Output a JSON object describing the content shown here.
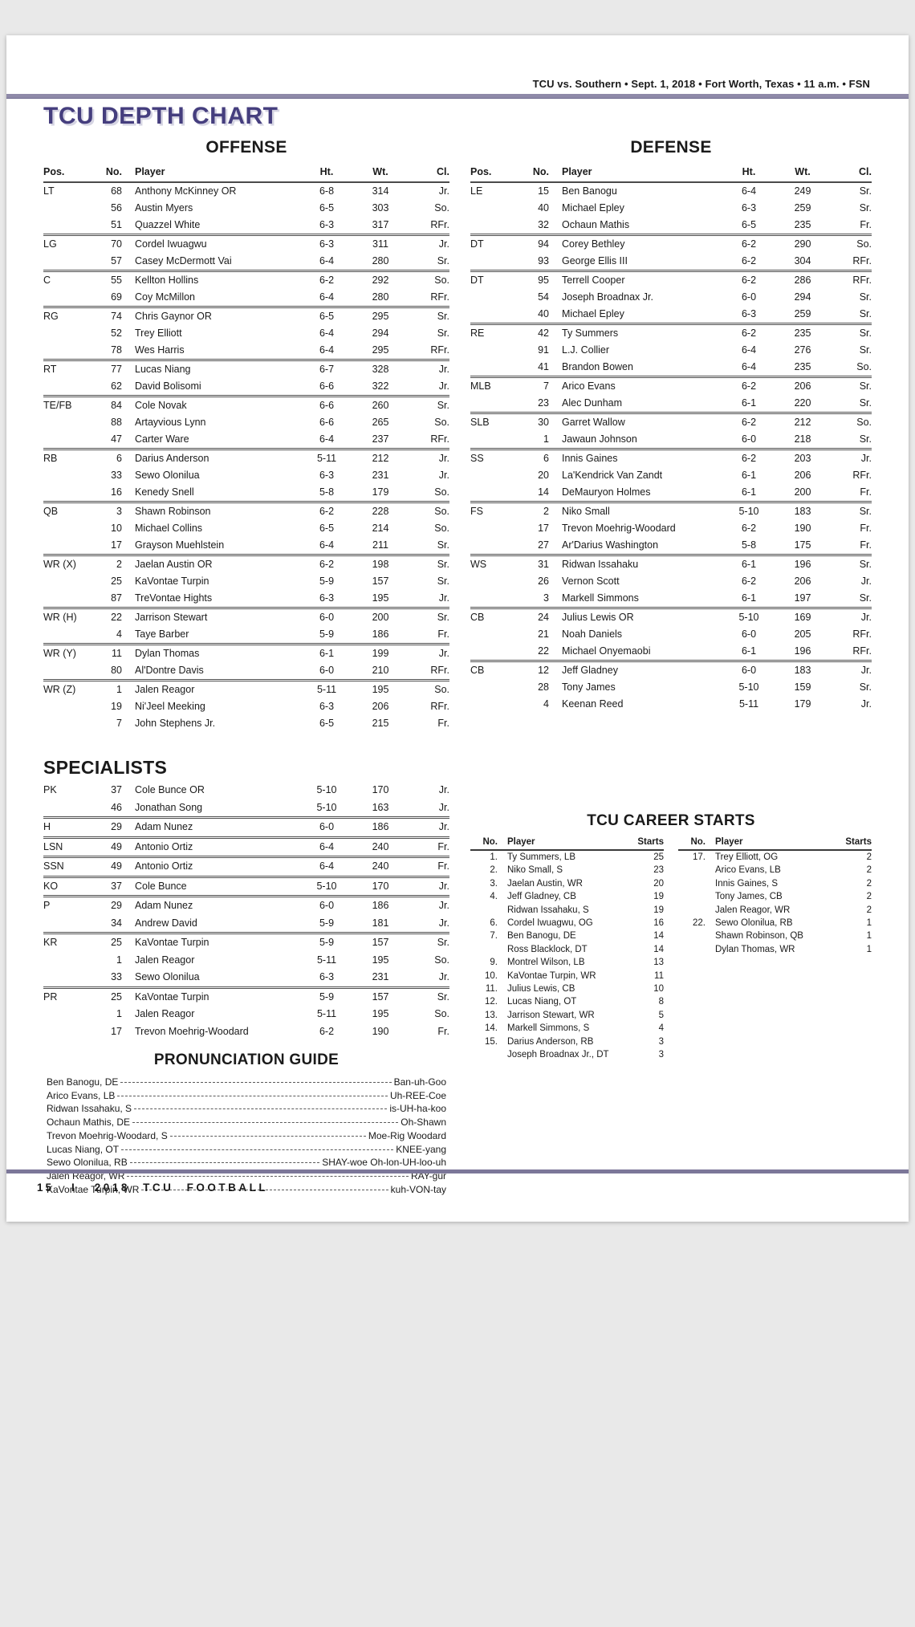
{
  "header": {
    "game_info": "TCU vs. Southern • Sept. 1, 2018 • Fort Worth, Texas • 11 a.m. • FSN"
  },
  "title": "TCU DEPTH CHART",
  "colors": {
    "accent_purple": "#453e7e",
    "header_rule": "#8f8aa9",
    "footer_rule": "#7c7799"
  },
  "columns": {
    "pos": "Pos.",
    "no": "No.",
    "player": "Player",
    "ht": "Ht.",
    "wt": "Wt.",
    "cl": "Cl."
  },
  "offense": {
    "title": "OFFENSE",
    "rows": [
      {
        "pos": "LT",
        "no": "68",
        "player": "Anthony McKinney OR",
        "ht": "6-8",
        "wt": "314",
        "cl": "Jr."
      },
      {
        "pos": "",
        "no": "56",
        "player": "Austin Myers",
        "ht": "6-5",
        "wt": "303",
        "cl": "So."
      },
      {
        "pos": "",
        "no": "51",
        "player": "Quazzel White",
        "ht": "6-3",
        "wt": "317",
        "cl": "RFr."
      },
      {
        "pos": "LG",
        "no": "70",
        "player": "Cordel Iwuagwu",
        "ht": "6-3",
        "wt": "311",
        "cl": "Jr.",
        "sep": true
      },
      {
        "pos": "",
        "no": "57",
        "player": "Casey McDermott Vai",
        "ht": "6-4",
        "wt": "280",
        "cl": "Sr."
      },
      {
        "pos": "C",
        "no": "55",
        "player": "Kellton Hollins",
        "ht": "6-2",
        "wt": "292",
        "cl": "So.",
        "sep": true
      },
      {
        "pos": "",
        "no": "69",
        "player": "Coy McMillon",
        "ht": "6-4",
        "wt": "280",
        "cl": "RFr."
      },
      {
        "pos": "RG",
        "no": "74",
        "player": "Chris Gaynor OR",
        "ht": "6-5",
        "wt": "295",
        "cl": "Sr.",
        "sep": true
      },
      {
        "pos": "",
        "no": "52",
        "player": "Trey Elliott",
        "ht": "6-4",
        "wt": "294",
        "cl": "Sr."
      },
      {
        "pos": "",
        "no": "78",
        "player": "Wes Harris",
        "ht": "6-4",
        "wt": "295",
        "cl": "RFr."
      },
      {
        "pos": "RT",
        "no": "77",
        "player": "Lucas Niang",
        "ht": "6-7",
        "wt": "328",
        "cl": "Jr.",
        "sep": true
      },
      {
        "pos": "",
        "no": "62",
        "player": "David Bolisomi",
        "ht": "6-6",
        "wt": "322",
        "cl": "Jr."
      },
      {
        "pos": "TE/FB",
        "no": "84",
        "player": "Cole Novak",
        "ht": "6-6",
        "wt": "260",
        "cl": "Sr.",
        "sep": true
      },
      {
        "pos": "",
        "no": "88",
        "player": "Artayvious Lynn",
        "ht": "6-6",
        "wt": "265",
        "cl": "So."
      },
      {
        "pos": "",
        "no": "47",
        "player": "Carter Ware",
        "ht": "6-4",
        "wt": "237",
        "cl": "RFr."
      },
      {
        "pos": "RB",
        "no": "6",
        "player": "Darius Anderson",
        "ht": "5-11",
        "wt": "212",
        "cl": "Jr.",
        "sep": true
      },
      {
        "pos": "",
        "no": "33",
        "player": "Sewo Olonilua",
        "ht": "6-3",
        "wt": "231",
        "cl": "Jr."
      },
      {
        "pos": "",
        "no": "16",
        "player": "Kenedy Snell",
        "ht": "5-8",
        "wt": "179",
        "cl": "So."
      },
      {
        "pos": "QB",
        "no": "3",
        "player": "Shawn Robinson",
        "ht": "6-2",
        "wt": "228",
        "cl": "So.",
        "sep": true
      },
      {
        "pos": "",
        "no": "10",
        "player": "Michael Collins",
        "ht": "6-5",
        "wt": "214",
        "cl": "So."
      },
      {
        "pos": "",
        "no": "17",
        "player": "Grayson Muehlstein",
        "ht": "6-4",
        "wt": "211",
        "cl": "Sr."
      },
      {
        "pos": "WR (X)",
        "no": "2",
        "player": "Jaelan Austin OR",
        "ht": "6-2",
        "wt": "198",
        "cl": "Sr.",
        "sep": true
      },
      {
        "pos": "",
        "no": "25",
        "player": "KaVontae Turpin",
        "ht": "5-9",
        "wt": "157",
        "cl": "Sr."
      },
      {
        "pos": "",
        "no": "87",
        "player": "TreVontae Hights",
        "ht": "6-3",
        "wt": "195",
        "cl": "Jr."
      },
      {
        "pos": "WR (H)",
        "no": "22",
        "player": "Jarrison Stewart",
        "ht": "6-0",
        "wt": "200",
        "cl": "Sr.",
        "sep": true
      },
      {
        "pos": "",
        "no": "4",
        "player": "Taye Barber",
        "ht": "5-9",
        "wt": "186",
        "cl": "Fr."
      },
      {
        "pos": "WR (Y)",
        "no": "11",
        "player": "Dylan Thomas",
        "ht": "6-1",
        "wt": "199",
        "cl": "Jr.",
        "sep": true
      },
      {
        "pos": "",
        "no": "80",
        "player": "Al'Dontre Davis",
        "ht": "6-0",
        "wt": "210",
        "cl": "RFr."
      },
      {
        "pos": "WR (Z)",
        "no": "1",
        "player": "Jalen Reagor",
        "ht": "5-11",
        "wt": "195",
        "cl": "So.",
        "sep": true
      },
      {
        "pos": "",
        "no": "19",
        "player": "Ni'Jeel Meeking",
        "ht": "6-3",
        "wt": "206",
        "cl": "RFr."
      },
      {
        "pos": "",
        "no": "7",
        "player": "John Stephens Jr.",
        "ht": "6-5",
        "wt": "215",
        "cl": "Fr."
      }
    ]
  },
  "defense": {
    "title": "DEFENSE",
    "rows": [
      {
        "pos": "LE",
        "no": "15",
        "player": "Ben Banogu",
        "ht": "6-4",
        "wt": "249",
        "cl": "Sr."
      },
      {
        "pos": "",
        "no": "40",
        "player": "Michael Epley",
        "ht": "6-3",
        "wt": "259",
        "cl": "Sr."
      },
      {
        "pos": "",
        "no": "32",
        "player": "Ochaun Mathis",
        "ht": "6-5",
        "wt": "235",
        "cl": "Fr."
      },
      {
        "pos": "DT",
        "no": "94",
        "player": "Corey Bethley",
        "ht": "6-2",
        "wt": "290",
        "cl": "So.",
        "sep": true
      },
      {
        "pos": "",
        "no": "93",
        "player": "George Ellis III",
        "ht": "6-2",
        "wt": "304",
        "cl": "RFr."
      },
      {
        "pos": "DT",
        "no": "95",
        "player": "Terrell Cooper",
        "ht": "6-2",
        "wt": "286",
        "cl": "RFr.",
        "sep": true
      },
      {
        "pos": "",
        "no": "54",
        "player": "Joseph Broadnax Jr.",
        "ht": "6-0",
        "wt": "294",
        "cl": "Sr."
      },
      {
        "pos": "",
        "no": "40",
        "player": "Michael Epley",
        "ht": "6-3",
        "wt": "259",
        "cl": "Sr."
      },
      {
        "pos": "RE",
        "no": "42",
        "player": "Ty Summers",
        "ht": "6-2",
        "wt": "235",
        "cl": "Sr.",
        "sep": true
      },
      {
        "pos": "",
        "no": "91",
        "player": "L.J. Collier",
        "ht": "6-4",
        "wt": "276",
        "cl": "Sr."
      },
      {
        "pos": "",
        "no": "41",
        "player": "Brandon Bowen",
        "ht": "6-4",
        "wt": "235",
        "cl": "So."
      },
      {
        "pos": "MLB",
        "no": "7",
        "player": "Arico Evans",
        "ht": "6-2",
        "wt": "206",
        "cl": "Sr.",
        "sep": true
      },
      {
        "pos": "",
        "no": "23",
        "player": "Alec Dunham",
        "ht": "6-1",
        "wt": "220",
        "cl": "Sr."
      },
      {
        "pos": "SLB",
        "no": "30",
        "player": "Garret Wallow",
        "ht": "6-2",
        "wt": "212",
        "cl": "So.",
        "sep": true
      },
      {
        "pos": "",
        "no": "1",
        "player": "Jawaun Johnson",
        "ht": "6-0",
        "wt": "218",
        "cl": "Sr."
      },
      {
        "pos": "SS",
        "no": "6",
        "player": "Innis Gaines",
        "ht": "6-2",
        "wt": "203",
        "cl": "Jr.",
        "sep": true
      },
      {
        "pos": "",
        "no": "20",
        "player": "La'Kendrick Van Zandt",
        "ht": "6-1",
        "wt": "206",
        "cl": "RFr."
      },
      {
        "pos": "",
        "no": "14",
        "player": "DeMauryon Holmes",
        "ht": "6-1",
        "wt": "200",
        "cl": "Fr."
      },
      {
        "pos": "FS",
        "no": "2",
        "player": "Niko Small",
        "ht": "5-10",
        "wt": "183",
        "cl": "Sr.",
        "sep": true
      },
      {
        "pos": "",
        "no": "17",
        "player": "Trevon Moehrig-Woodard",
        "ht": "6-2",
        "wt": "190",
        "cl": "Fr."
      },
      {
        "pos": "",
        "no": "27",
        "player": "Ar'Darius Washington",
        "ht": "5-8",
        "wt": "175",
        "cl": "Fr."
      },
      {
        "pos": "WS",
        "no": "31",
        "player": "Ridwan Issahaku",
        "ht": "6-1",
        "wt": "196",
        "cl": "Sr.",
        "sep": true
      },
      {
        "pos": "",
        "no": "26",
        "player": "Vernon Scott",
        "ht": "6-2",
        "wt": "206",
        "cl": "Jr."
      },
      {
        "pos": "",
        "no": "3",
        "player": "Markell Simmons",
        "ht": "6-1",
        "wt": "197",
        "cl": "Sr."
      },
      {
        "pos": "CB",
        "no": "24",
        "player": "Julius Lewis OR",
        "ht": "5-10",
        "wt": "169",
        "cl": "Jr.",
        "sep": true
      },
      {
        "pos": "",
        "no": "21",
        "player": "Noah Daniels",
        "ht": "6-0",
        "wt": "205",
        "cl": "RFr."
      },
      {
        "pos": "",
        "no": "22",
        "player": "Michael Onyemaobi",
        "ht": "6-1",
        "wt": "196",
        "cl": "RFr."
      },
      {
        "pos": "CB",
        "no": "12",
        "player": "Jeff Gladney",
        "ht": "6-0",
        "wt": "183",
        "cl": "Jr.",
        "sep": true
      },
      {
        "pos": "",
        "no": "28",
        "player": "Tony James",
        "ht": "5-10",
        "wt": "159",
        "cl": "Sr."
      },
      {
        "pos": "",
        "no": "4",
        "player": "Keenan Reed",
        "ht": "5-11",
        "wt": "179",
        "cl": "Jr."
      }
    ]
  },
  "specialists": {
    "title": "SPECIALISTS",
    "rows": [
      {
        "pos": "PK",
        "no": "37",
        "player": "Cole Bunce OR",
        "ht": "5-10",
        "wt": "170",
        "cl": "Jr."
      },
      {
        "pos": "",
        "no": "46",
        "player": "Jonathan Song",
        "ht": "5-10",
        "wt": "163",
        "cl": "Jr."
      },
      {
        "pos": "H",
        "no": "29",
        "player": "Adam Nunez",
        "ht": "6-0",
        "wt": "186",
        "cl": "Jr.",
        "sep": true
      },
      {
        "pos": "LSN",
        "no": "49",
        "player": "Antonio Ortiz",
        "ht": "6-4",
        "wt": "240",
        "cl": "Fr.",
        "sep": true
      },
      {
        "pos": "SSN",
        "no": "49",
        "player": "Antonio Ortiz",
        "ht": "6-4",
        "wt": "240",
        "cl": "Fr.",
        "sep": true
      },
      {
        "pos": "KO",
        "no": "37",
        "player": "Cole Bunce",
        "ht": "5-10",
        "wt": "170",
        "cl": "Jr.",
        "sep": true
      },
      {
        "pos": "P",
        "no": "29",
        "player": "Adam Nunez",
        "ht": "6-0",
        "wt": "186",
        "cl": "Jr.",
        "sep": true
      },
      {
        "pos": "",
        "no": "34",
        "player": "Andrew David",
        "ht": "5-9",
        "wt": "181",
        "cl": "Jr."
      },
      {
        "pos": "KR",
        "no": "25",
        "player": "KaVontae Turpin",
        "ht": "5-9",
        "wt": "157",
        "cl": "Sr.",
        "sep": true
      },
      {
        "pos": "",
        "no": "1",
        "player": "Jalen Reagor",
        "ht": "5-11",
        "wt": "195",
        "cl": "So."
      },
      {
        "pos": "",
        "no": "33",
        "player": "Sewo Olonilua",
        "ht": "6-3",
        "wt": "231",
        "cl": "Jr."
      },
      {
        "pos": "PR",
        "no": "25",
        "player": "KaVontae Turpin",
        "ht": "5-9",
        "wt": "157",
        "cl": "Sr.",
        "sep": true
      },
      {
        "pos": "",
        "no": "1",
        "player": "Jalen Reagor",
        "ht": "5-11",
        "wt": "195",
        "cl": "So."
      },
      {
        "pos": "",
        "no": "17",
        "player": "Trevon Moehrig-Woodard",
        "ht": "6-2",
        "wt": "190",
        "cl": "Fr."
      }
    ]
  },
  "career_starts": {
    "title": "TCU CAREER STARTS",
    "columns": {
      "no": "No.",
      "player": "Player",
      "starts": "Starts"
    },
    "left_rows": [
      {
        "no": "1.",
        "player": "Ty Summers, LB",
        "starts": "25"
      },
      {
        "no": "2.",
        "player": "Niko Small, S",
        "starts": "23"
      },
      {
        "no": "3.",
        "player": "Jaelan Austin, WR",
        "starts": "20"
      },
      {
        "no": "4.",
        "player": "Jeff Gladney, CB",
        "starts": "19"
      },
      {
        "no": "",
        "player": "Ridwan Issahaku, S",
        "starts": "19"
      },
      {
        "no": "6.",
        "player": "Cordel Iwuagwu, OG",
        "starts": "16"
      },
      {
        "no": "7.",
        "player": "Ben Banogu, DE",
        "starts": "14"
      },
      {
        "no": "",
        "player": "Ross Blacklock, DT",
        "starts": "14"
      },
      {
        "no": "9.",
        "player": "Montrel Wilson, LB",
        "starts": "13"
      },
      {
        "no": "10.",
        "player": "KaVontae Turpin, WR",
        "starts": "11"
      },
      {
        "no": "11.",
        "player": "Julius Lewis, CB",
        "starts": "10"
      },
      {
        "no": "12.",
        "player": "Lucas Niang, OT",
        "starts": "8"
      },
      {
        "no": "13.",
        "player": "Jarrison Stewart, WR",
        "starts": "5"
      },
      {
        "no": "14.",
        "player": "Markell Simmons, S",
        "starts": "4"
      },
      {
        "no": "15.",
        "player": "Darius Anderson, RB",
        "starts": "3"
      },
      {
        "no": "",
        "player": "Joseph Broadnax Jr., DT",
        "starts": "3"
      }
    ],
    "right_rows": [
      {
        "no": "17.",
        "player": "Trey Elliott, OG",
        "starts": "2"
      },
      {
        "no": "",
        "player": "Arico Evans, LB",
        "starts": "2"
      },
      {
        "no": "",
        "player": "Innis Gaines, S",
        "starts": "2"
      },
      {
        "no": "",
        "player": "Tony James, CB",
        "starts": "2"
      },
      {
        "no": "",
        "player": "Jalen Reagor, WR",
        "starts": "2"
      },
      {
        "no": "22.",
        "player": "Sewo Olonilua, RB",
        "starts": "1"
      },
      {
        "no": "",
        "player": "Shawn Robinson, QB",
        "starts": "1"
      },
      {
        "no": "",
        "player": "Dylan Thomas, WR",
        "starts": "1"
      }
    ]
  },
  "pronunciation": {
    "title": "PRONUNCIATION GUIDE",
    "rows": [
      {
        "name": "Ben Banogu, DE",
        "pron": "Ban-uh-Goo"
      },
      {
        "name": "Arico Evans, LB",
        "pron": "Uh-REE-Coe"
      },
      {
        "name": "Ridwan Issahaku, S",
        "pron": "is-UH-ha-koo"
      },
      {
        "name": "Ochaun Mathis, DE",
        "pron": "Oh-Shawn"
      },
      {
        "name": "Trevon Moehrig-Woodard, S",
        "pron": "Moe-Rig Woodard"
      },
      {
        "name": "Lucas Niang, OT",
        "pron": "KNEE-yang"
      },
      {
        "name": "Sewo Olonilua, RB",
        "pron": "SHAY-woe Oh-lon-UH-loo-uh"
      },
      {
        "name": "Jalen Reagor, WR",
        "pron": "RAY-gur"
      },
      {
        "name": "KaVontae Turpin, WR",
        "pron": "kuh-VON-tay"
      }
    ]
  },
  "footer": {
    "page_number": "15",
    "separator": "I",
    "label": "2018 TCU FOOTBALL"
  }
}
